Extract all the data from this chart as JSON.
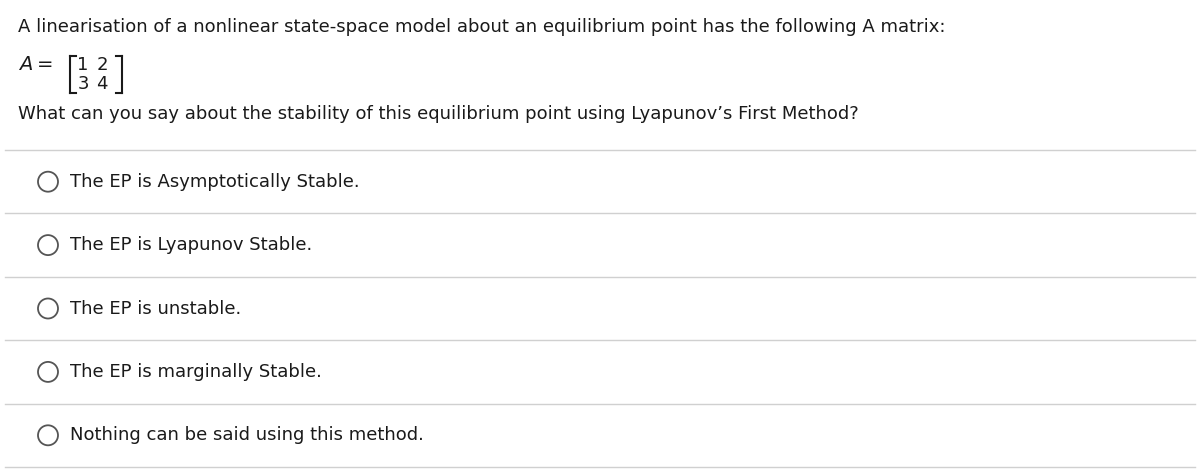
{
  "bg_color": "#ffffff",
  "text_color": "#1a1a1a",
  "line_color": "#d0d0d0",
  "title_line1": "A linearisation of a nonlinear state-space model about an equilibrium point has the following A matrix:",
  "question": "What can you say about the stability of this equilibrium point using Lyapunov’s First Method?",
  "options": [
    "The EP is Asymptotically Stable.",
    "The EP is Lyapunov Stable.",
    "The EP is unstable.",
    "The EP is marginally Stable.",
    "Nothing can be said using this method."
  ],
  "font_size_title": 13.0,
  "font_size_question": 13.0,
  "font_size_options": 13.0,
  "font_size_matrix": 13.0,
  "circle_color": "#555555"
}
